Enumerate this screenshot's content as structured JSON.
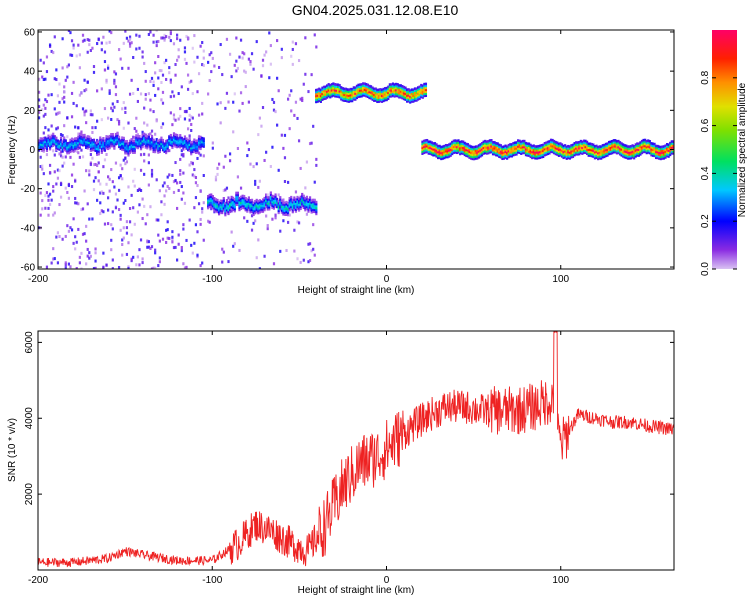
{
  "title": "GN04.2025.031.12.08.E10",
  "colors": {
    "snr_line": "#ee2222",
    "frame": "#000000"
  },
  "chart_data": [
    {
      "type": "heatmap",
      "xlabel": "Height of straight line (km)",
      "ylabel": "Frequency (Hz)",
      "xlim": [
        -200,
        165
      ],
      "ylim": [
        -61,
        61
      ],
      "xticks": [
        -200,
        -100,
        0,
        100
      ],
      "yticks": [
        -60,
        -40,
        -20,
        0,
        20,
        40,
        60
      ],
      "colorbar": {
        "label": "Normalized spectral amplitude",
        "range": [
          0,
          1
        ],
        "ticks": [
          "0.0",
          "0.2",
          "0.4",
          "0.6",
          "0.8"
        ],
        "colormap": "rainbow (purple→blue→cyan→green→yellow→orange→red→pink)"
      },
      "ridge": [
        {
          "x_from": -200,
          "x_to": -105,
          "freq_hz": 3,
          "amplitude": 0.35,
          "noise": "high"
        },
        {
          "x_from": -103,
          "x_to": -40,
          "freq_hz": -28,
          "amplitude": 0.4,
          "noise": "medium"
        },
        {
          "x_from": -41,
          "x_to": 22,
          "freq_hz": 29,
          "amplitude": 0.9,
          "noise": "low"
        },
        {
          "x_from": 20,
          "x_to": 165,
          "freq_hz": 0,
          "amplitude": 0.95,
          "noise": "low"
        }
      ]
    },
    {
      "type": "line",
      "xlabel": "Height of straight line (km)",
      "ylabel": "SNR (10 * v/v)",
      "xlim": [
        -200,
        165
      ],
      "ylim": [
        0,
        6300
      ],
      "xticks": [
        -200,
        -100,
        0,
        100
      ],
      "yticks": [
        2000,
        4000,
        6000
      ],
      "series": [
        {
          "x": [
            -200,
            -180,
            -160,
            -150,
            -140,
            -120,
            -100,
            -85,
            -75,
            -65,
            -55,
            -45,
            -35,
            -25,
            -15,
            -5,
            5,
            15,
            25,
            35,
            45,
            55,
            65,
            75,
            85,
            95,
            100,
            110,
            120,
            130,
            140,
            150,
            165
          ],
          "values": [
            200,
            200,
            300,
            500,
            400,
            250,
            250,
            700,
            1200,
            1000,
            700,
            500,
            1200,
            2200,
            2800,
            3000,
            3400,
            3800,
            4100,
            4300,
            4300,
            4200,
            4200,
            4200,
            4300,
            4500,
            3300,
            4100,
            4000,
            3900,
            3900,
            3800,
            3700
          ]
        }
      ]
    }
  ]
}
